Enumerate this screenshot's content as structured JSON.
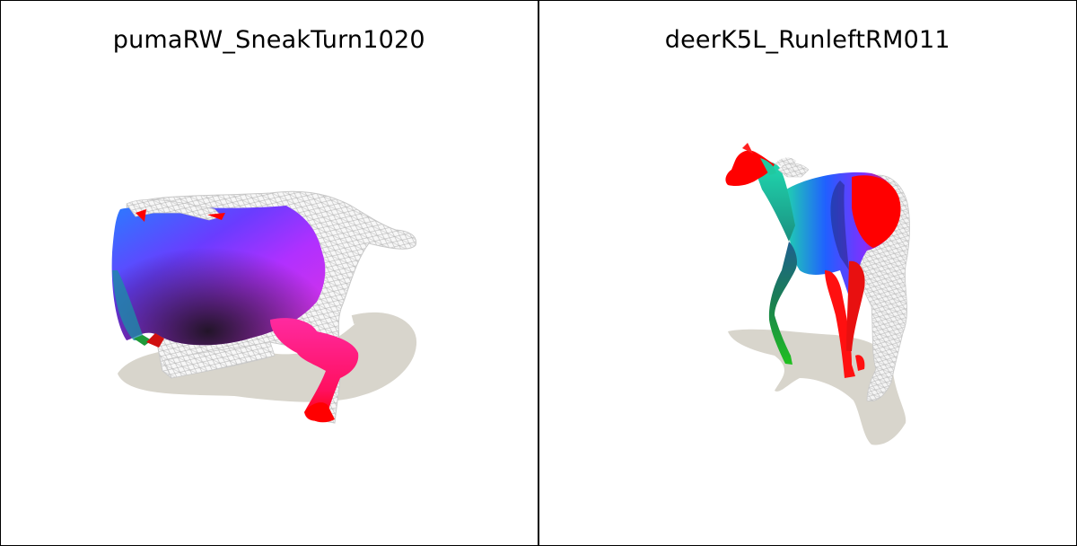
{
  "panels": [
    {
      "title": "pumaRW_SneakTurn1020"
    },
    {
      "title": "deerK5L_RunleftRM011"
    }
  ],
  "colors": {
    "shadow": "#d8d5cc",
    "wireframe": "#bdbdbd",
    "red": "#ff0000",
    "magenta": "#d040ff",
    "blue": "#2040ff",
    "teal": "#20d0a0",
    "green": "#20a020"
  }
}
